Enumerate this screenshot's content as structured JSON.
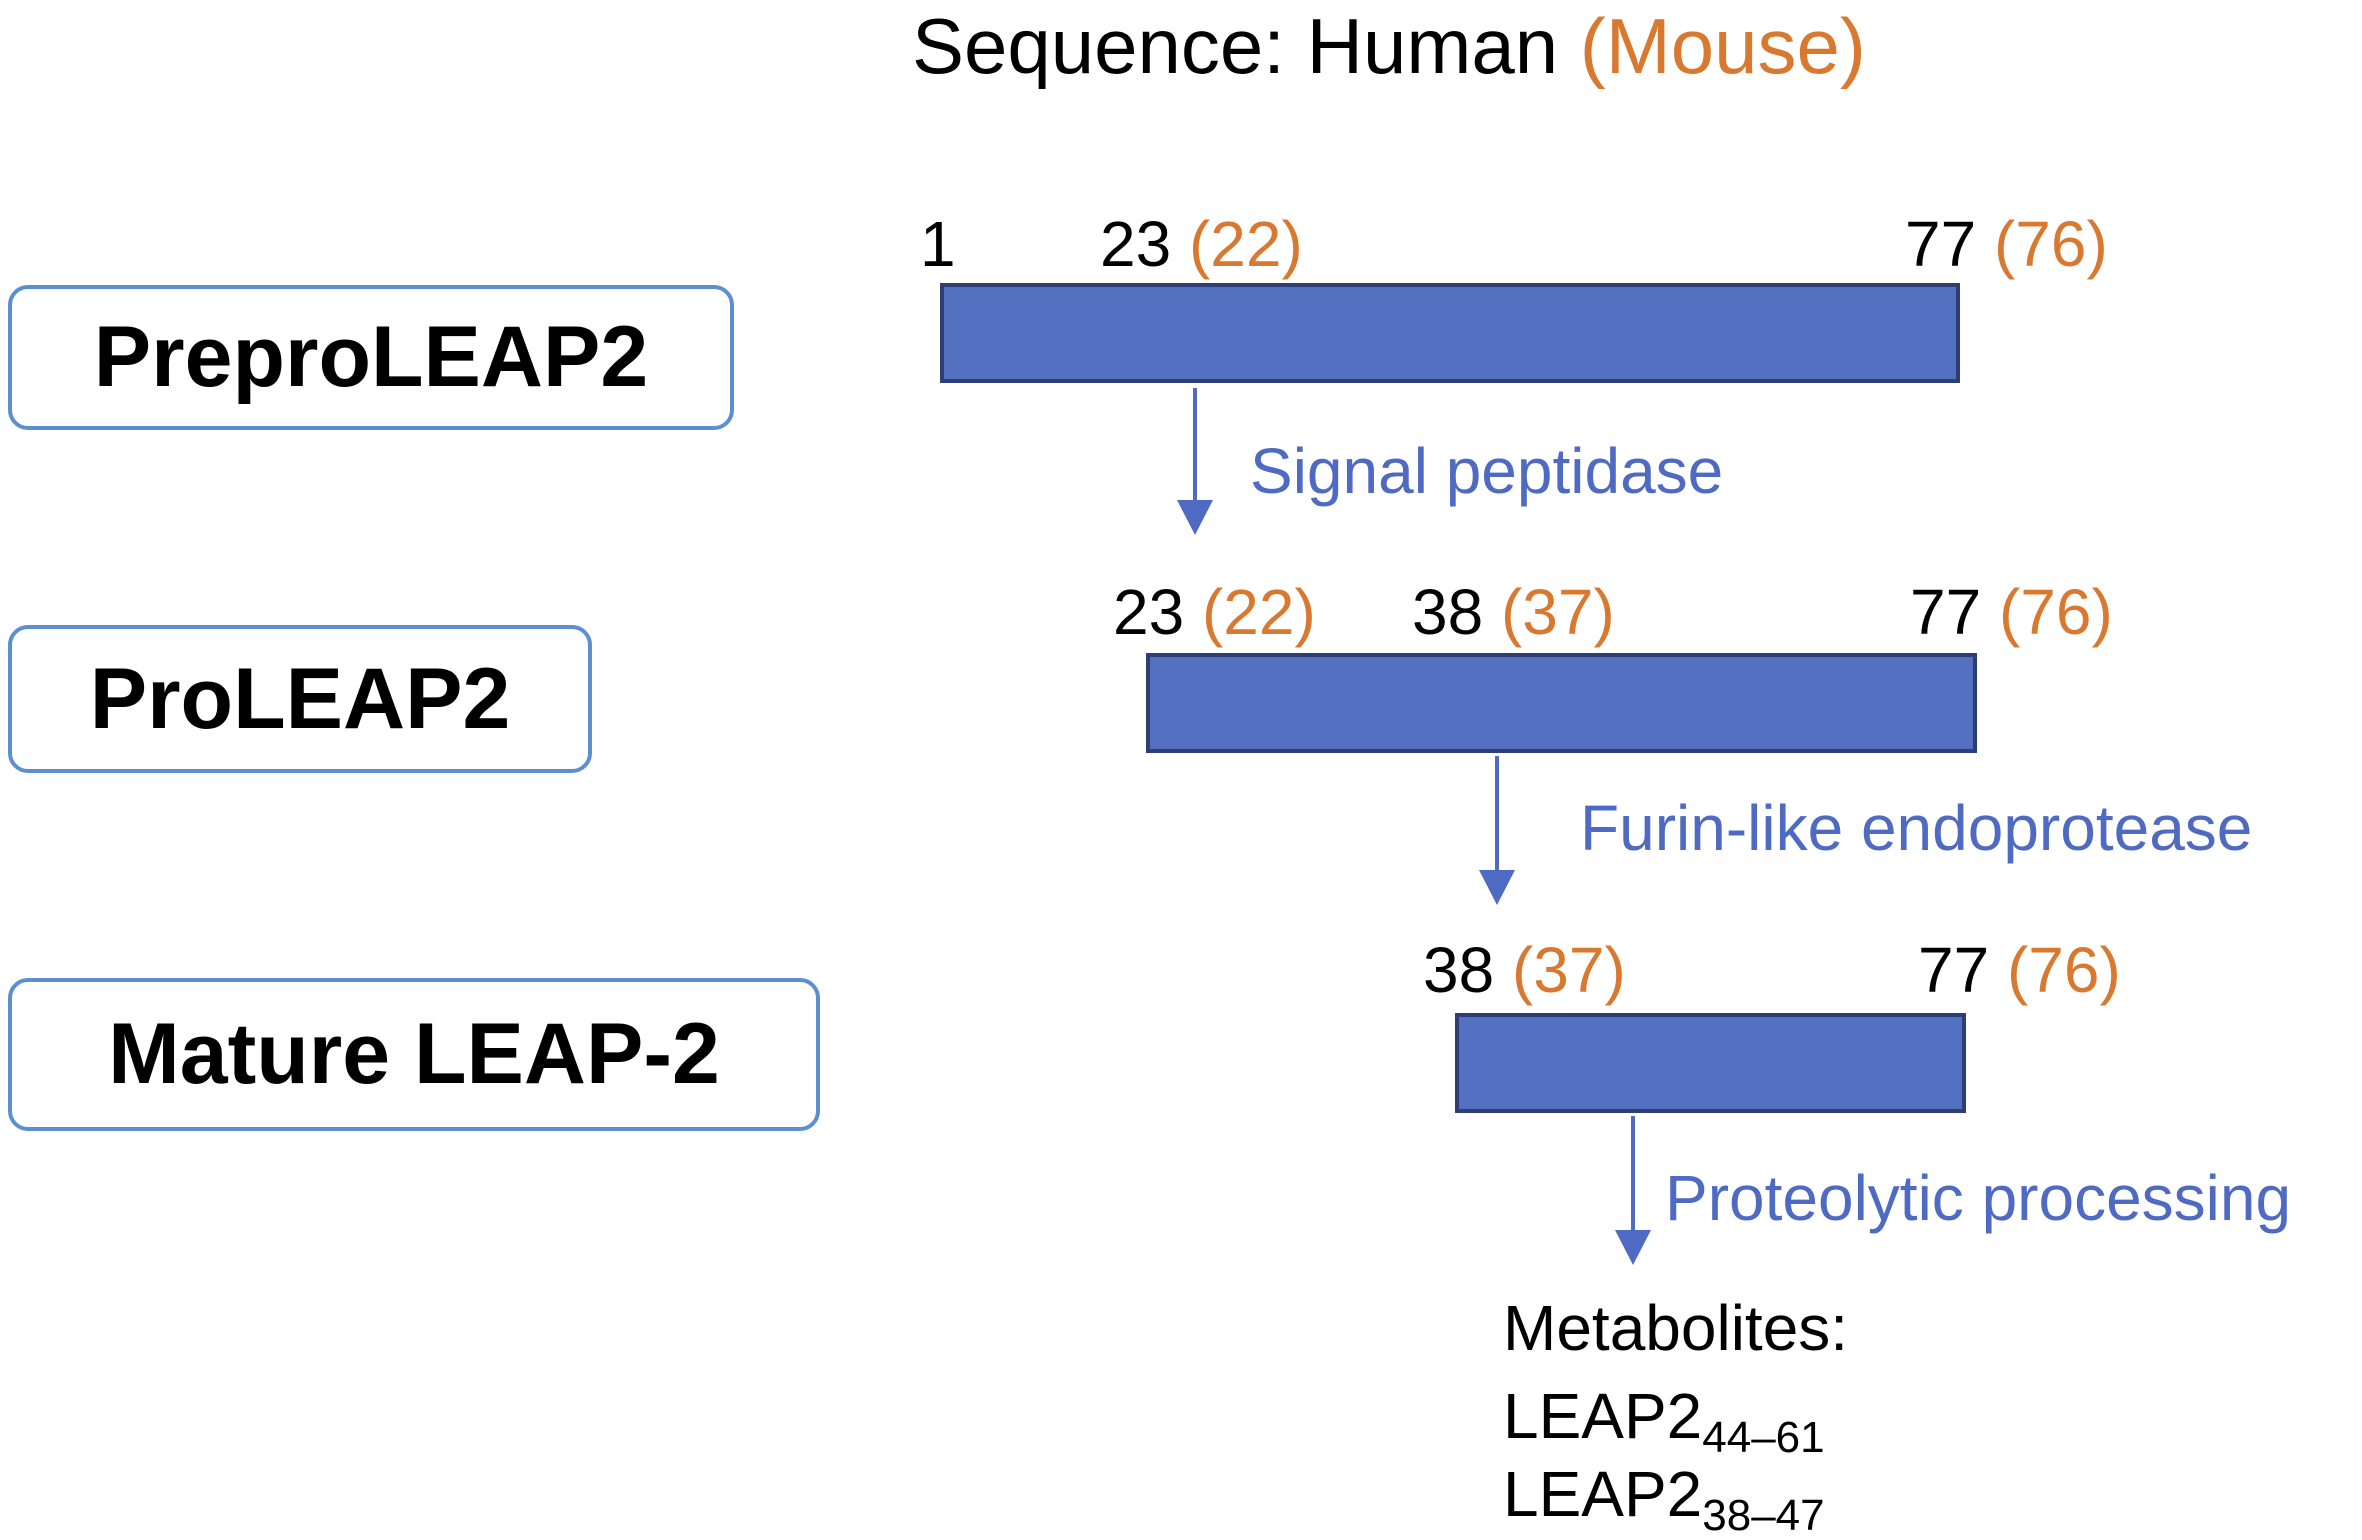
{
  "header": {
    "prefix": "Sequence: Human ",
    "mouse": "(Mouse)"
  },
  "stages": [
    {
      "name": "PreproLEAP2",
      "start_human": "1",
      "mid_human": "23",
      "mid_mouse": "(22)",
      "end_human": "77",
      "end_mouse": "(76)"
    },
    {
      "name": "ProLEAP2",
      "start_human": "23",
      "start_mouse": "(22)",
      "mid_human": "38",
      "mid_mouse": "(37)",
      "end_human": "77",
      "end_mouse": "(76)"
    },
    {
      "name": "Mature LEAP-2",
      "start_human": "38",
      "start_mouse": "(37)",
      "end_human": "77",
      "end_mouse": "(76)"
    }
  ],
  "enzymes": [
    "Signal peptidase",
    "Furin-like endoprotease",
    "Proteolytic processing"
  ],
  "metabolites": {
    "title": "Metabolites:",
    "items": [
      {
        "name": "LEAP2",
        "range": "44–61"
      },
      {
        "name": "LEAP2",
        "range": "38–47"
      }
    ]
  },
  "colors": {
    "bar_fill": "#5470C1",
    "bar_border": "#2E3E73",
    "box_border": "#5B8FD0",
    "mouse_text": "#D9782F",
    "enzyme_text": "#4E6AC3"
  }
}
